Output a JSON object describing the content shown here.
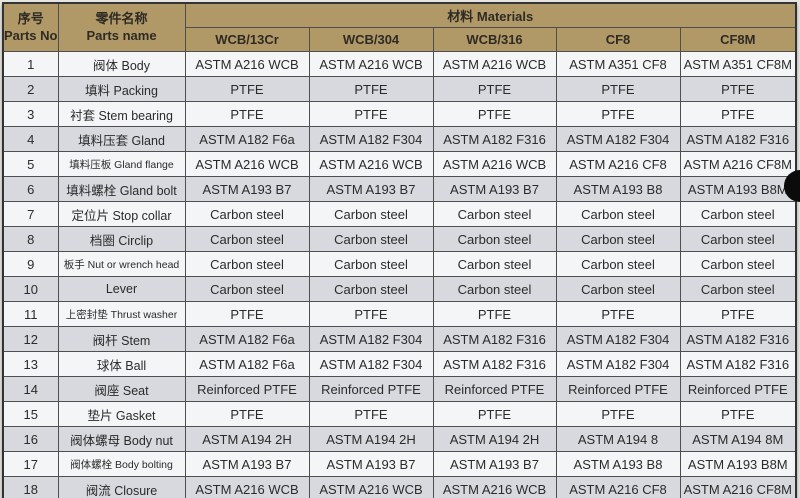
{
  "colors": {
    "page_bg": "#e7e5e0",
    "header_bg": "#b19967",
    "row_light": "#f4f5f7",
    "row_dark": "#d7d9de",
    "grid": "#4f4f4f",
    "text": "#2b2b2b",
    "hole": "#0b0b0b"
  },
  "header": {
    "parts_no_zh": "序号",
    "parts_no_en": "Parts No.",
    "parts_name_zh": "零件名称",
    "parts_name_en": "Parts name",
    "materials": "材料 Materials",
    "grades": [
      "WCB/13Cr",
      "WCB/304",
      "WCB/316",
      "CF8",
      "CF8M"
    ]
  },
  "rows": [
    {
      "no": "1",
      "zh": "阀体",
      "en": "Body",
      "values": [
        "ASTM A216 WCB",
        "ASTM A216 WCB",
        "ASTM A216 WCB",
        "ASTM A351 CF8",
        "ASTM A351 CF8M"
      ]
    },
    {
      "no": "2",
      "zh": "填料",
      "en": "Packing",
      "values": [
        "PTFE",
        "PTFE",
        "PTFE",
        "PTFE",
        "PTFE"
      ]
    },
    {
      "no": "3",
      "zh": "衬套",
      "en": "Stem bearing",
      "values": [
        "PTFE",
        "PTFE",
        "PTFE",
        "PTFE",
        "PTFE"
      ]
    },
    {
      "no": "4",
      "zh": "填料压套",
      "en": "Gland",
      "values": [
        "ASTM A182 F6a",
        "ASTM A182 F304",
        "ASTM A182 F316",
        "ASTM A182 F304",
        "ASTM A182 F316"
      ]
    },
    {
      "no": "5",
      "zh": "填料压板",
      "en": "Gland flange",
      "small": true,
      "values": [
        "ASTM A216 WCB",
        "ASTM A216 WCB",
        "ASTM A216 WCB",
        "ASTM A216 CF8",
        "ASTM A216 CF8M"
      ]
    },
    {
      "no": "6",
      "zh": "填料螺栓",
      "en": "Gland bolt",
      "values": [
        "ASTM A193 B7",
        "ASTM A193 B7",
        "ASTM A193 B7",
        "ASTM A193 B8",
        "ASTM A193 B8M"
      ]
    },
    {
      "no": "7",
      "zh": "定位片",
      "en": "Stop collar",
      "values": [
        "Carbon steel",
        "Carbon steel",
        "Carbon steel",
        "Carbon steel",
        "Carbon steel"
      ]
    },
    {
      "no": "8",
      "zh": "档圈",
      "en": "Circlip",
      "values": [
        "Carbon steel",
        "Carbon steel",
        "Carbon steel",
        "Carbon steel",
        "Carbon steel"
      ]
    },
    {
      "no": "9",
      "zh": "板手",
      "en": "Nut or wrench head",
      "small": true,
      "values": [
        "Carbon steel",
        "Carbon steel",
        "Carbon steel",
        "Carbon steel",
        "Carbon steel"
      ]
    },
    {
      "no": "10",
      "zh": "",
      "en": "Lever",
      "values": [
        "Carbon steel",
        "Carbon steel",
        "Carbon steel",
        "Carbon steel",
        "Carbon steel"
      ]
    },
    {
      "no": "11",
      "zh": "上密封垫",
      "en": "Thrust washer",
      "small": true,
      "values": [
        "PTFE",
        "PTFE",
        "PTFE",
        "PTFE",
        "PTFE"
      ]
    },
    {
      "no": "12",
      "zh": "阀杆",
      "en": "Stem",
      "values": [
        "ASTM A182 F6a",
        "ASTM A182 F304",
        "ASTM A182 F316",
        "ASTM A182 F304",
        "ASTM A182 F316"
      ]
    },
    {
      "no": "13",
      "zh": "球体",
      "en": "Ball",
      "values": [
        "ASTM A182 F6a",
        "ASTM A182 F304",
        "ASTM A182 F316",
        "ASTM A182 F304",
        "ASTM A182 F316"
      ]
    },
    {
      "no": "14",
      "zh": "阀座",
      "en": "Seat",
      "values": [
        "Reinforced PTFE",
        "Reinforced PTFE",
        "Reinforced PTFE",
        "Reinforced PTFE",
        "Reinforced PTFE"
      ]
    },
    {
      "no": "15",
      "zh": "垫片",
      "en": "Gasket",
      "values": [
        "PTFE",
        "PTFE",
        "PTFE",
        "PTFE",
        "PTFE"
      ]
    },
    {
      "no": "16",
      "zh": "阀体螺母",
      "en": "Body nut",
      "values": [
        "ASTM A194 2H",
        "ASTM A194 2H",
        "ASTM A194 2H",
        "ASTM A194 8",
        "ASTM A194 8M"
      ]
    },
    {
      "no": "17",
      "zh": "阀体螺栓",
      "en": "Body bolting",
      "small": true,
      "values": [
        "ASTM A193 B7",
        "ASTM A193 B7",
        "ASTM A193 B7",
        "ASTM A193 B8",
        "ASTM A193 B8M"
      ]
    },
    {
      "no": "18",
      "zh": "阀流",
      "en": "Closure",
      "values": [
        "ASTM A216 WCB",
        "ASTM A216 WCB",
        "ASTM A216 WCB",
        "ASTM A216 CF8",
        "ASTM A216 CF8M"
      ]
    }
  ]
}
